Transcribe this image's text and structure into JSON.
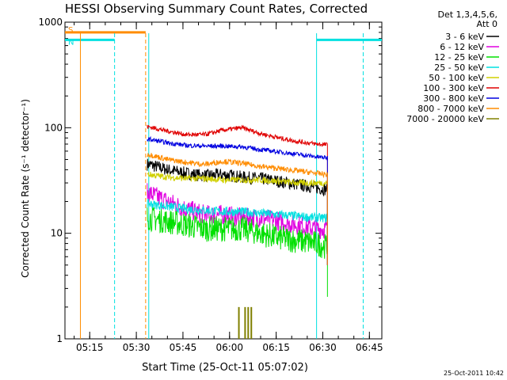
{
  "chart_data": {
    "type": "line",
    "title": "HESSI Observing Summary Count Rates, Corrected",
    "xlabel": "Start Time (25-Oct-11 05:07:02)",
    "ylabel": "Corrected Count Rate (s⁻¹ detector⁻¹)",
    "yscale": "log",
    "xlim": [
      "05:07:02",
      "06:49:00"
    ],
    "ylim": [
      1,
      1000
    ],
    "x_ticks": [
      "05:15",
      "05:30",
      "05:45",
      "06:00",
      "06:15",
      "06:30",
      "06:45"
    ],
    "y_ticks": [
      "1",
      "10",
      "100",
      "1000"
    ],
    "legend_header": [
      "Det 1,3,4,5,6,",
      "Att 0"
    ],
    "legend_position": "right",
    "timestamp": "25-Oct-2011 10:42",
    "data_start": "05:33:30",
    "data_end": "06:31:30",
    "series": [
      {
        "name": "3 - 6 keV",
        "color": "#000000",
        "x": [
          "05:34",
          "05:40",
          "05:46",
          "05:52",
          "05:58",
          "06:04",
          "06:10",
          "06:16",
          "06:22",
          "06:28",
          "06:31"
        ],
        "values": [
          45,
          40,
          37,
          35,
          36,
          34,
          33,
          31,
          29,
          27,
          26
        ]
      },
      {
        "name": "6 - 12 keV",
        "color": "#e000e0",
        "x": [
          "05:34",
          "05:40",
          "05:46",
          "05:52",
          "05:58",
          "06:04",
          "06:10",
          "06:16",
          "06:22",
          "06:28",
          "06:31"
        ],
        "values": [
          24,
          20,
          17,
          15,
          15,
          14,
          14,
          13,
          12,
          11,
          11
        ]
      },
      {
        "name": "12 - 25 keV",
        "color": "#00e000",
        "x": [
          "05:34",
          "05:40",
          "05:46",
          "05:52",
          "05:58",
          "06:04",
          "06:10",
          "06:16",
          "06:22",
          "06:28",
          "06:31"
        ],
        "values": [
          14,
          13,
          12,
          11,
          11,
          11,
          10,
          9,
          8.5,
          8,
          7.5
        ]
      },
      {
        "name": "25 - 50 keV",
        "color": "#00e0e0",
        "x": [
          "05:34",
          "05:40",
          "05:46",
          "05:52",
          "05:58",
          "06:04",
          "06:10",
          "06:16",
          "06:22",
          "06:28",
          "06:31"
        ],
        "values": [
          19,
          18,
          17,
          16.5,
          16,
          16,
          15.5,
          15,
          14.5,
          14,
          14
        ]
      },
      {
        "name": "50 - 100 keV",
        "color": "#d0d000",
        "x": [
          "05:34",
          "05:40",
          "05:46",
          "05:52",
          "05:58",
          "06:04",
          "06:10",
          "06:16",
          "06:22",
          "06:28",
          "06:31"
        ],
        "values": [
          36,
          34,
          33,
          33,
          32,
          32,
          32,
          31,
          30,
          30,
          30
        ]
      },
      {
        "name": "100 - 300 keV",
        "color": "#e00000",
        "x": [
          "05:34",
          "05:40",
          "05:46",
          "05:52",
          "05:58",
          "06:04",
          "06:10",
          "06:16",
          "06:22",
          "06:28",
          "06:31"
        ],
        "values": [
          102,
          93,
          86,
          86,
          95,
          100,
          88,
          80,
          74,
          70,
          69
        ]
      },
      {
        "name": "300 - 800 keV",
        "color": "#0000e0",
        "x": [
          "05:34",
          "05:40",
          "05:46",
          "05:52",
          "05:58",
          "06:04",
          "06:10",
          "06:16",
          "06:22",
          "06:28",
          "06:31"
        ],
        "values": [
          78,
          72,
          68,
          67,
          67,
          66,
          62,
          59,
          56,
          53,
          52
        ]
      },
      {
        "name": "800 - 7000 keV",
        "color": "#ff8c00",
        "x": [
          "05:34",
          "05:40",
          "05:46",
          "05:52",
          "05:58",
          "06:04",
          "06:10",
          "06:16",
          "06:22",
          "06:28",
          "06:31"
        ],
        "values": [
          56,
          50,
          47,
          45,
          48,
          46,
          43,
          41,
          39,
          37,
          36
        ]
      },
      {
        "name": "7000 - 20000 keV",
        "color": "#808000",
        "x": [
          "06:00",
          "06:03",
          "06:04",
          "06:05",
          "06:06",
          "06:07",
          "06:08"
        ],
        "values": [
          1,
          2,
          1,
          2,
          2,
          2,
          1
        ]
      }
    ],
    "flags": [
      {
        "label": "S",
        "color": "#ff8c00",
        "start": "05:07:02",
        "end": "05:33:00",
        "level": 800
      },
      {
        "label": "N",
        "color": "#00e0e0",
        "start": "05:07:02",
        "end": "05:23:00",
        "level": 680
      },
      {
        "label": "",
        "color": "#00e0e0",
        "start": "06:28:00",
        "end": "06:49:00",
        "level": 680
      }
    ]
  }
}
